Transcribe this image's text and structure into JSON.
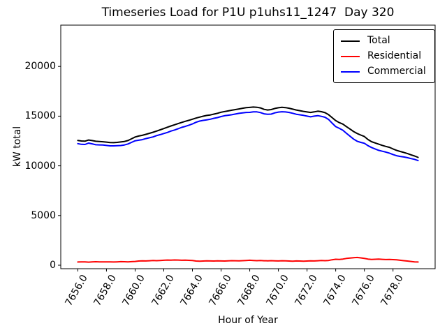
{
  "chart_data": {
    "type": "line",
    "title": "Timeseries Load for P1U p1uhs11_1247  Day 320",
    "xlabel": "Hour of Year",
    "ylabel": "kW total",
    "xlim": [
      7654.81,
      7680.94
    ],
    "ylim": [
      -351,
      24157
    ],
    "grid": false,
    "legend_position": "upper right",
    "x_ticks": [
      7656,
      7658,
      7660,
      7662,
      7664,
      7666,
      7668,
      7670,
      7672,
      7674,
      7676,
      7678
    ],
    "x_tick_labels": [
      "7656.0",
      "7658.0",
      "7660.0",
      "7662.0",
      "7664.0",
      "7666.0",
      "7668.0",
      "7670.0",
      "7672.0",
      "7674.0",
      "7676.0",
      "7678.0"
    ],
    "y_ticks": [
      0,
      5000,
      10000,
      15000,
      20000
    ],
    "y_tick_labels": [
      "0",
      "5000",
      "10000",
      "15000",
      "20000"
    ],
    "x": [
      7656.0,
      7656.25,
      7656.5,
      7656.75,
      7657.0,
      7657.25,
      7657.5,
      7657.75,
      7658.0,
      7658.25,
      7658.5,
      7658.75,
      7659.0,
      7659.25,
      7659.5,
      7659.75,
      7660.0,
      7660.25,
      7660.5,
      7660.75,
      7661.0,
      7661.25,
      7661.5,
      7661.75,
      7662.0,
      7662.25,
      7662.5,
      7662.75,
      7663.0,
      7663.25,
      7663.5,
      7663.75,
      7664.0,
      7664.25,
      7664.5,
      7664.75,
      7665.0,
      7665.25,
      7665.5,
      7665.75,
      7666.0,
      7666.25,
      7666.5,
      7666.75,
      7667.0,
      7667.25,
      7667.5,
      7667.75,
      7668.0,
      7668.25,
      7668.5,
      7668.75,
      7669.0,
      7669.25,
      7669.5,
      7669.75,
      7670.0,
      7670.25,
      7670.5,
      7670.75,
      7671.0,
      7671.25,
      7671.5,
      7671.75,
      7672.0,
      7672.25,
      7672.5,
      7672.75,
      7673.0,
      7673.25,
      7673.5,
      7673.75,
      7674.0,
      7674.25,
      7674.5,
      7674.75,
      7675.0,
      7675.25,
      7675.5,
      7675.75,
      7676.0,
      7676.25,
      7676.5,
      7676.75,
      7677.0,
      7677.25,
      7677.5,
      7677.75,
      7678.0,
      7678.25,
      7678.5,
      7678.75,
      7679.0,
      7679.25,
      7679.5,
      7679.75
    ],
    "series": [
      {
        "name": "Total",
        "color": "#000000",
        "values": [
          12550,
          12500,
          12480,
          12600,
          12540,
          12470,
          12450,
          12420,
          12390,
          12340,
          12330,
          12360,
          12400,
          12450,
          12540,
          12720,
          12900,
          13000,
          13070,
          13170,
          13270,
          13380,
          13500,
          13620,
          13750,
          13880,
          14010,
          14130,
          14250,
          14370,
          14480,
          14580,
          14690,
          14800,
          14900,
          14990,
          15070,
          15120,
          15200,
          15290,
          15390,
          15460,
          15530,
          15600,
          15660,
          15720,
          15790,
          15850,
          15880,
          15910,
          15890,
          15830,
          15680,
          15620,
          15660,
          15770,
          15840,
          15890,
          15860,
          15790,
          15700,
          15620,
          15550,
          15480,
          15420,
          15370,
          15430,
          15500,
          15450,
          15350,
          15150,
          14850,
          14550,
          14350,
          14200,
          13950,
          13700,
          13450,
          13250,
          13100,
          12950,
          12650,
          12430,
          12300,
          12180,
          12060,
          11950,
          11860,
          11700,
          11560,
          11450,
          11350,
          11240,
          11110,
          10990,
          10850
        ]
      },
      {
        "name": "Residential",
        "color": "#ff0000",
        "values": [
          320,
          340,
          330,
          310,
          330,
          350,
          340,
          330,
          340,
          330,
          320,
          340,
          360,
          350,
          340,
          360,
          380,
          420,
          440,
          430,
          450,
          470,
          460,
          480,
          500,
          520,
          510,
          530,
          520,
          500,
          510,
          490,
          480,
          420,
          400,
          420,
          440,
          430,
          420,
          440,
          430,
          420,
          440,
          460,
          450,
          440,
          460,
          480,
          500,
          480,
          460,
          470,
          450,
          440,
          460,
          440,
          430,
          450,
          440,
          420,
          410,
          430,
          420,
          400,
          420,
          440,
          430,
          450,
          470,
          460,
          480,
          550,
          600,
          580,
          620,
          680,
          720,
          760,
          780,
          740,
          680,
          620,
          580,
          600,
          620,
          590,
          570,
          580,
          560,
          540,
          500,
          460,
          420,
          380,
          340,
          320
        ]
      },
      {
        "name": "Commercial",
        "color": "#0000ff",
        "values": [
          12230,
          12160,
          12150,
          12290,
          12210,
          12120,
          12110,
          12090,
          12050,
          12010,
          12010,
          12020,
          12040,
          12100,
          12200,
          12360,
          12520,
          12580,
          12630,
          12740,
          12820,
          12910,
          13040,
          13140,
          13250,
          13360,
          13500,
          13600,
          13730,
          13870,
          13970,
          14090,
          14210,
          14380,
          14500,
          14570,
          14630,
          14690,
          14780,
          14850,
          14960,
          15040,
          15090,
          15140,
          15210,
          15280,
          15330,
          15370,
          15380,
          15430,
          15430,
          15360,
          15230,
          15180,
          15200,
          15330,
          15410,
          15440,
          15420,
          15370,
          15290,
          15190,
          15130,
          15080,
          15000,
          14930,
          15000,
          15050,
          14980,
          14890,
          14670,
          14300,
          13950,
          13770,
          13580,
          13270,
          12980,
          12690,
          12470,
          12360,
          12270,
          12030,
          11850,
          11700,
          11560,
          11470,
          11380,
          11280,
          11140,
          11020,
          10950,
          10890,
          10820,
          10730,
          10650,
          10530
        ]
      }
    ]
  }
}
